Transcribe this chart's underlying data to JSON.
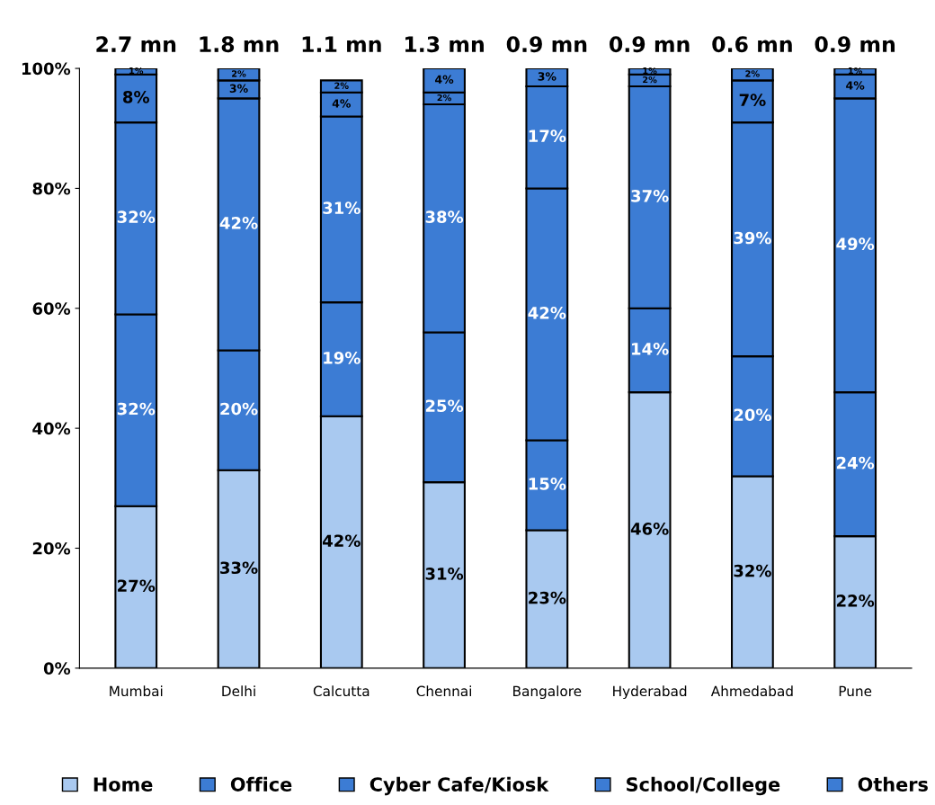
{
  "chart_data": {
    "type": "bar",
    "stacked": true,
    "categories": [
      "Mumbai",
      "Delhi",
      "Calcutta",
      "Chennai",
      "Bangalore",
      "Hyderabad",
      "Ahmedabad",
      "Pune"
    ],
    "series": [
      {
        "name": "Home",
        "color": "#a9c9f0",
        "values": [
          27,
          33,
          42,
          31,
          23,
          46,
          32,
          22
        ],
        "value_labels": [
          "27%",
          "33%",
          "42%",
          "31%",
          "23%",
          "46%",
          "32%",
          "22%"
        ]
      },
      {
        "name": "Office",
        "color": "#3c7cd4",
        "values": [
          32,
          20,
          19,
          25,
          15,
          14,
          20,
          24
        ],
        "value_labels": [
          "32%",
          "20%",
          "19%",
          "25%",
          "15%",
          "14%",
          "20%",
          "24%"
        ]
      },
      {
        "name": "Cyber Cafe/Kiosk",
        "color": "#3c7cd4",
        "values": [
          32,
          42,
          31,
          38,
          42,
          37,
          39,
          49
        ],
        "value_labels": [
          "32%",
          "42%",
          "31%",
          "38%",
          "42%",
          "37%",
          "39%",
          "49%"
        ]
      },
      {
        "name": "School/College",
        "color": "#3c7cd4",
        "values": [
          8,
          3,
          4,
          2,
          17,
          2,
          7,
          4
        ],
        "value_labels": [
          "8%",
          "3%",
          "4%",
          "2%",
          "17%",
          "2%",
          "7%",
          "4%"
        ]
      },
      {
        "name": "Others",
        "color": "#3c7cd4",
        "values": [
          1,
          2,
          2,
          4,
          3,
          1,
          2,
          1
        ],
        "value_labels": [
          "1%",
          "2%",
          "2%",
          "4%",
          "3%",
          "1%",
          "2%",
          "1%"
        ]
      }
    ],
    "annotations": [
      "2.7 mn",
      "1.8 mn",
      "1.1 mn",
      "1.3 mn",
      "0.9 mn",
      "0.9 mn",
      "0.6 mn",
      "0.9 mn"
    ],
    "ylim": [
      0,
      100
    ],
    "yticks": [
      {
        "value": 0,
        "label": "0%"
      },
      {
        "value": 20,
        "label": "20%"
      },
      {
        "value": 40,
        "label": "40%"
      },
      {
        "value": 60,
        "label": "60%"
      },
      {
        "value": 80,
        "label": "80%"
      },
      {
        "value": 100,
        "label": "100%"
      }
    ],
    "grid": false,
    "legend": "bottom"
  }
}
